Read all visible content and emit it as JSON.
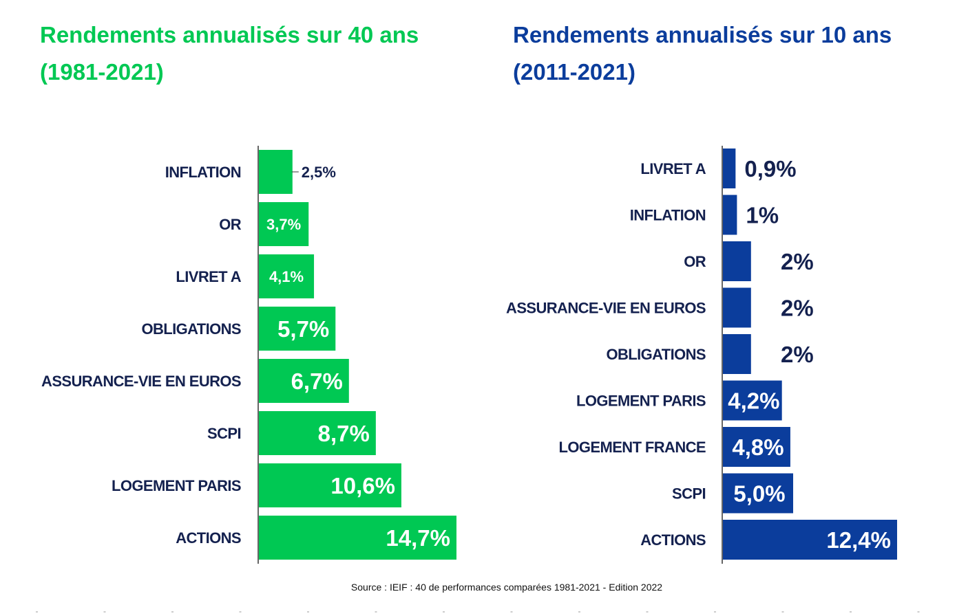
{
  "source": "Source : IEIF : 40 de performances comparées 1981-2021 - Edition 2022",
  "colors": {
    "left": "#00c853",
    "right": "#0b3d9c",
    "label": "#14214f"
  },
  "chart_data": [
    {
      "type": "bar",
      "orientation": "horizontal",
      "title_line1": "Rendements annualisés sur 40 ans",
      "title_line2": "(1981-2021)",
      "categories": [
        "INFLATION",
        "OR",
        "LIVRET A",
        "OBLIGATIONS",
        "ASSURANCE-VIE EN EUROS",
        "SCPI",
        "LOGEMENT PARIS",
        "ACTIONS"
      ],
      "values": [
        2.5,
        3.7,
        4.1,
        5.7,
        6.7,
        8.7,
        10.6,
        14.7
      ],
      "value_labels": [
        "2,5%",
        "3,7%",
        "4,1%",
        "5,7%",
        "6,7%",
        "8,7%",
        "10,6%",
        "14,7%"
      ],
      "label_position": [
        "outside",
        "inside",
        "inside",
        "inside",
        "inside",
        "inside",
        "inside",
        "inside"
      ],
      "xlim": [
        0,
        14.7
      ],
      "grid": false
    },
    {
      "type": "bar",
      "orientation": "horizontal",
      "title_line1": "Rendements annualisés sur 10 ans",
      "title_line2": "(2011-2021)",
      "categories": [
        "LIVRET A",
        "INFLATION",
        "OR",
        "ASSURANCE-VIE EN EUROS",
        "OBLIGATIONS",
        "LOGEMENT PARIS",
        "LOGEMENT FRANCE",
        "SCPI",
        "ACTIONS"
      ],
      "values": [
        0.9,
        1,
        2,
        2,
        2,
        4.2,
        4.8,
        5.0,
        12.4
      ],
      "value_labels": [
        "0,9%",
        "1%",
        "2%",
        "2%",
        "2%",
        "4,2%",
        "4,8%",
        "5,0%",
        "12,4%"
      ],
      "label_position": [
        "outside",
        "outside",
        "outside",
        "outside",
        "outside",
        "inside",
        "inside",
        "inside",
        "inside"
      ],
      "xlim": [
        0,
        12.4
      ],
      "grid": false
    }
  ]
}
